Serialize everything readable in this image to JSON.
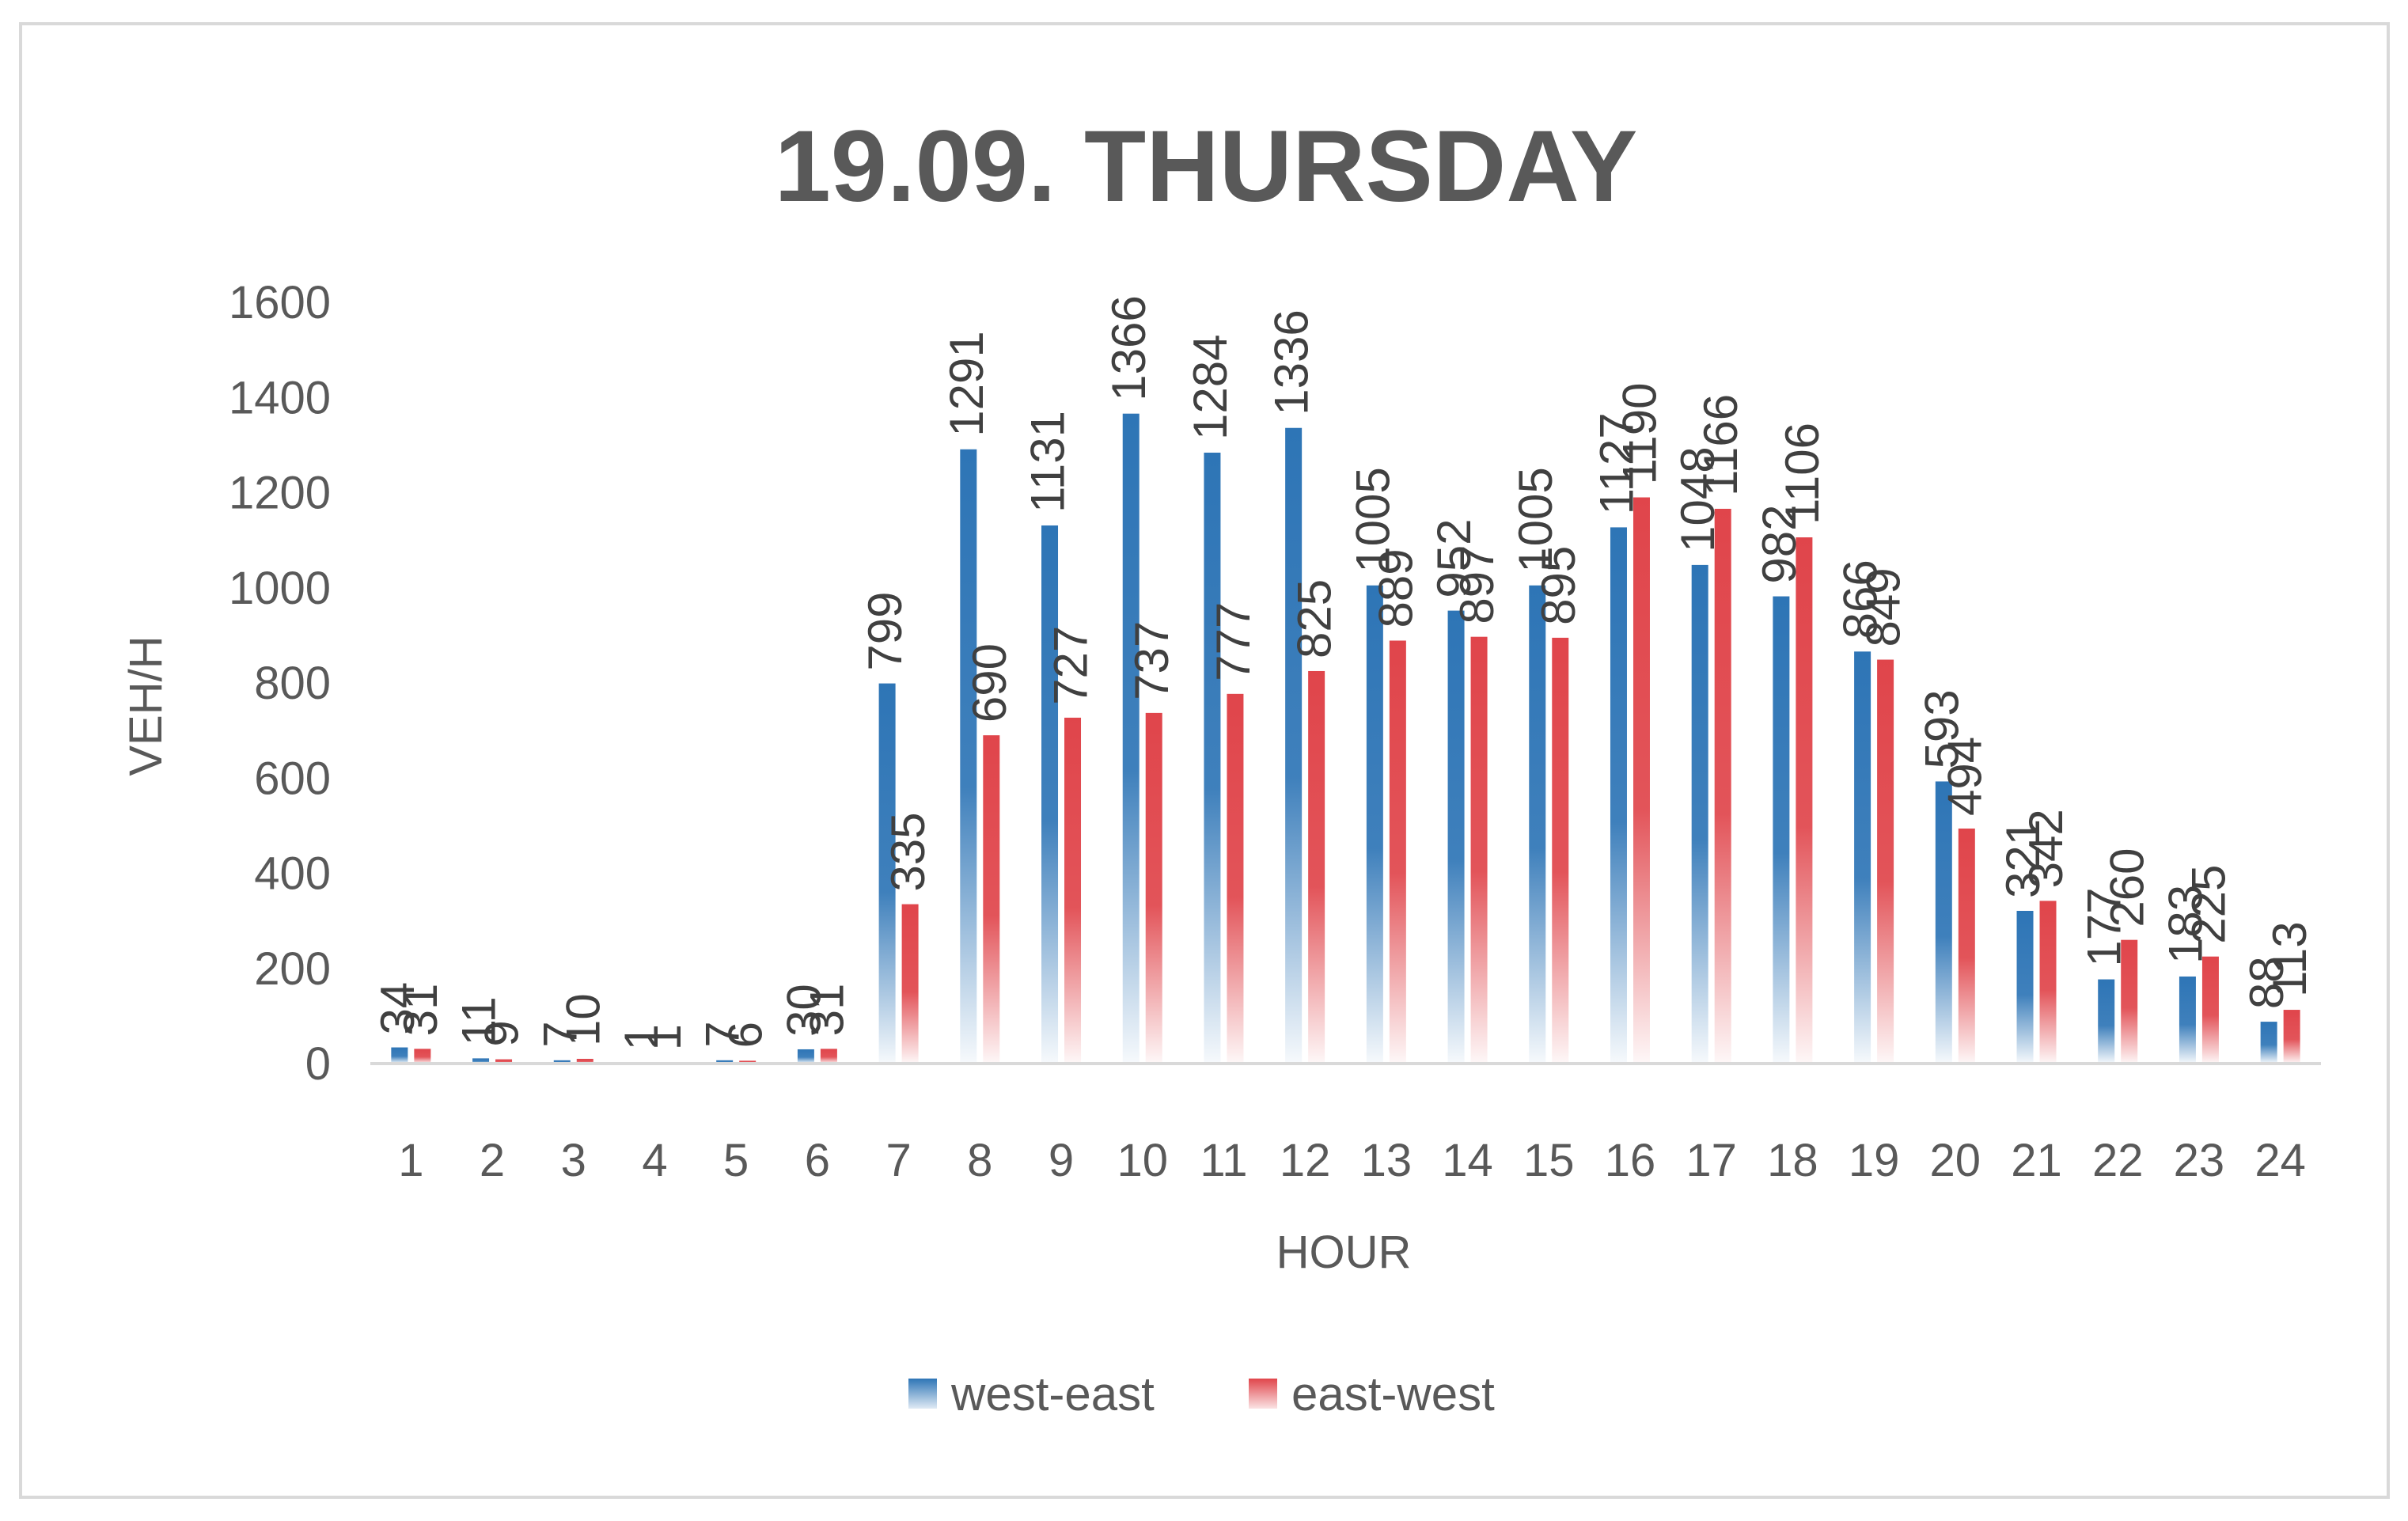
{
  "chart_data": {
    "type": "bar",
    "title": "19.09. THURSDAY",
    "xlabel": "HOUR",
    "ylabel": "VEH/H",
    "categories": [
      "1",
      "2",
      "3",
      "4",
      "5",
      "6",
      "7",
      "8",
      "9",
      "10",
      "11",
      "12",
      "13",
      "14",
      "15",
      "16",
      "17",
      "18",
      "19",
      "20",
      "21",
      "22",
      "23",
      "24"
    ],
    "series": [
      {
        "name": "west-east",
        "color": "#2e75b6",
        "values": [
          34,
          11,
          7,
          1,
          7,
          30,
          799,
          1291,
          1131,
          1366,
          1284,
          1336,
          1005,
          952,
          1005,
          1127,
          1048,
          982,
          866,
          593,
          321,
          177,
          183,
          88
        ]
      },
      {
        "name": "east-west",
        "color": "#e0454b",
        "values": [
          31,
          9,
          10,
          1,
          6,
          31,
          335,
          690,
          727,
          737,
          777,
          825,
          889,
          897,
          895,
          1190,
          1166,
          1106,
          849,
          494,
          342,
          260,
          225,
          113
        ]
      }
    ],
    "ylim": [
      0,
      1600
    ],
    "yticks": [
      0,
      200,
      400,
      600,
      800,
      1000,
      1200,
      1400,
      1600
    ],
    "grid": false,
    "legend_position": "bottom"
  }
}
